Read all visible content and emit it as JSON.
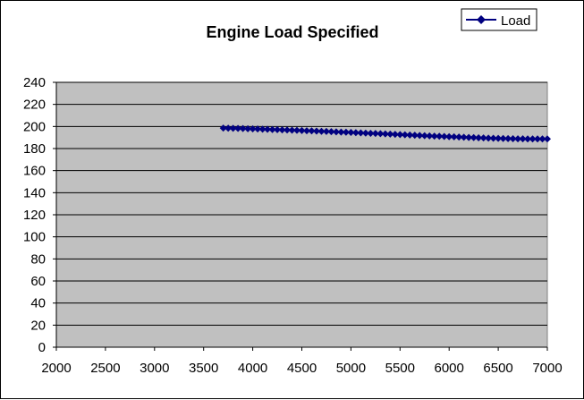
{
  "chart_data": {
    "type": "line",
    "title": "Engine Load Specified",
    "xlabel": "",
    "ylabel": "",
    "xlim": [
      2000,
      7000
    ],
    "ylim": [
      0,
      240
    ],
    "xticks": [
      2000,
      2500,
      3000,
      3500,
      4000,
      4500,
      5000,
      5500,
      6000,
      6500,
      7000
    ],
    "yticks": [
      0,
      20,
      40,
      60,
      80,
      100,
      120,
      140,
      160,
      180,
      200,
      220,
      240
    ],
    "grid": "horizontal",
    "legend_position": "top-right",
    "plot_background": "#c0c0c0",
    "series_color": "#000080",
    "series": [
      {
        "name": "Load",
        "x": [
          3700,
          3750,
          3800,
          3850,
          3900,
          3950,
          4000,
          4050,
          4100,
          4150,
          4200,
          4250,
          4300,
          4350,
          4400,
          4450,
          4500,
          4550,
          4600,
          4650,
          4700,
          4750,
          4800,
          4850,
          4900,
          4950,
          5000,
          5050,
          5100,
          5150,
          5200,
          5250,
          5300,
          5350,
          5400,
          5450,
          5500,
          5550,
          5600,
          5650,
          5700,
          5750,
          5800,
          5850,
          5900,
          5950,
          6000,
          6050,
          6100,
          6150,
          6200,
          6250,
          6300,
          6350,
          6400,
          6450,
          6500,
          6550,
          6600,
          6650,
          6700,
          6750,
          6800,
          6850,
          6900,
          6950,
          7000
        ],
        "y": [
          198.5,
          198.4,
          198.3,
          198.2,
          198.1,
          197.9,
          197.8,
          197.7,
          197.5,
          197.4,
          197.2,
          197.1,
          196.9,
          196.8,
          196.6,
          196.5,
          196.3,
          196.1,
          196.0,
          195.8,
          195.6,
          195.5,
          195.3,
          195.1,
          194.9,
          194.8,
          194.6,
          194.4,
          194.2,
          194.0,
          193.8,
          193.7,
          193.5,
          193.3,
          193.1,
          192.9,
          192.7,
          192.5,
          192.3,
          192.1,
          191.9,
          191.7,
          191.5,
          191.3,
          191.1,
          190.9,
          190.7,
          190.6,
          190.4,
          190.2,
          190.0,
          189.9,
          189.7,
          189.6,
          189.4,
          189.3,
          189.2,
          189.1,
          189.0,
          188.9,
          188.8,
          188.8,
          188.7,
          188.7,
          188.7,
          188.7,
          188.7
        ]
      }
    ]
  }
}
